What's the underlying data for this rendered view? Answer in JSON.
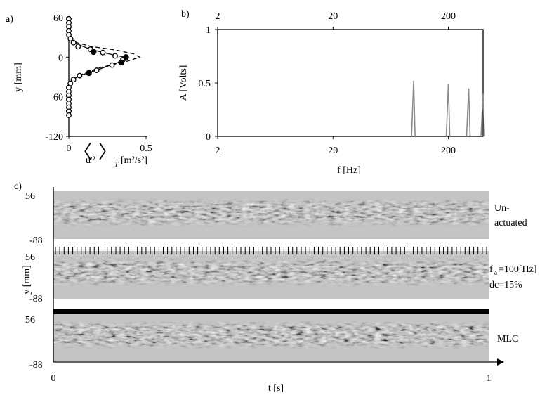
{
  "chart_data": [
    {
      "panel": "a)",
      "type": "scatter",
      "xlabel": "⟨u'²⟩",
      "xlabel_subscript": "T",
      "xlabel_units": "[m²/s²]",
      "ylabel": "y [mm]",
      "xlim": [
        0,
        0.5
      ],
      "ylim": [
        -120,
        60
      ],
      "xticks": [
        "0",
        "0.5"
      ],
      "yticks": [
        "60",
        "0",
        "-60",
        "-120"
      ],
      "series": [
        {
          "style": "open-markers",
          "points": [
            [
              0.0,
              58
            ],
            [
              0.0,
              52
            ],
            [
              0.0,
              46
            ],
            [
              0.0,
              40
            ],
            [
              0.0,
              34
            ],
            [
              0.01,
              28
            ],
            [
              0.03,
              22
            ],
            [
              0.06,
              16
            ],
            [
              0.14,
              12
            ],
            [
              0.22,
              7
            ],
            [
              0.3,
              2
            ],
            [
              0.35,
              -4
            ],
            [
              0.28,
              -12
            ],
            [
              0.18,
              -20
            ],
            [
              0.07,
              -28
            ],
            [
              0.03,
              -34
            ],
            [
              0.01,
              -40
            ],
            [
              0.0,
              -46
            ],
            [
              0.0,
              -52
            ],
            [
              0.0,
              -58
            ],
            [
              0.0,
              -64
            ],
            [
              0.0,
              -70
            ],
            [
              0.0,
              -76
            ],
            [
              0.0,
              -82
            ],
            [
              0.0,
              -88
            ]
          ]
        },
        {
          "style": "filled-markers",
          "points": [
            [
              0.16,
              8
            ],
            [
              0.37,
              0
            ],
            [
              0.34,
              -8
            ],
            [
              0.13,
              -24
            ]
          ]
        },
        {
          "style": "dashed-line",
          "points": [
            [
              0.0,
              42
            ],
            [
              0.02,
              30
            ],
            [
              0.05,
              22
            ],
            [
              0.15,
              16
            ],
            [
              0.3,
              11
            ],
            [
              0.42,
              5
            ],
            [
              0.46,
              0
            ],
            [
              0.38,
              -6
            ],
            [
              0.2,
              -16
            ],
            [
              0.06,
              -28
            ],
            [
              0.0,
              -40
            ]
          ]
        },
        {
          "style": "solid-line",
          "points": [
            [
              0.0,
              36
            ],
            [
              0.03,
              22
            ],
            [
              0.14,
              12
            ],
            [
              0.26,
              5
            ],
            [
              0.36,
              0
            ],
            [
              0.32,
              -8
            ],
            [
              0.2,
              -18
            ],
            [
              0.07,
              -28
            ],
            [
              0.0,
              -38
            ]
          ]
        }
      ]
    },
    {
      "panel": "b)",
      "type": "line",
      "xscale": "log",
      "xlabel": "f [Hz]",
      "ylabel": "A [Volts]",
      "xlim": [
        2,
        400
      ],
      "ylim": [
        0,
        1
      ],
      "xticks": [
        "2",
        "20",
        "200"
      ],
      "yticks": [
        "1",
        "0.5",
        "0"
      ],
      "peaks": [
        {
          "x": 100,
          "y": 0.52
        },
        {
          "x": 200,
          "y": 0.49
        },
        {
          "x": 300,
          "y": 0.45
        },
        {
          "x": 400,
          "y": 0.4
        }
      ]
    },
    {
      "panel": "c)",
      "type": "heatmap",
      "xlabel": "t [s]",
      "ylabel": "y [mm]",
      "xlim": [
        0,
        1
      ],
      "xticks": [
        "0",
        "1"
      ],
      "yticks": [
        "56",
        "-88"
      ],
      "rows": [
        {
          "labels": [
            "Un-",
            "actuated"
          ],
          "pulses": "none"
        },
        {
          "labels": [
            "f",
            "a",
            "=100[Hz]",
            "dc=15%"
          ],
          "pulses": "periodic",
          "pulse_count": 100
        },
        {
          "labels": [
            "MLC"
          ],
          "pulses": "continuous"
        }
      ]
    }
  ]
}
